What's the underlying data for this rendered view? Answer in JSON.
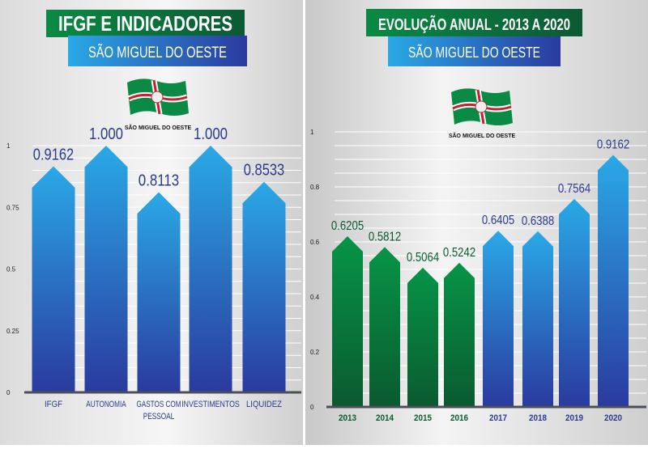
{
  "chart_data": [
    {
      "type": "bar",
      "title": "IFGF E INDICADORES",
      "subtitle": "SÃO MIGUEL DO OESTE",
      "logo_text": "SÃO MIGUEL DO OESTE",
      "categories": [
        "IFGF",
        "AUTONOMIA",
        "GASTOS COM PESSOAL",
        "INVESTIMENTOS",
        "LIQUIDEZ"
      ],
      "category_lines": [
        [
          "IFGF"
        ],
        [
          "AUTONOMIA"
        ],
        [
          "GASTOS COM",
          "PESSOAL"
        ],
        [
          "INVESTIMENTOS"
        ],
        [
          "LIQUIDEZ"
        ]
      ],
      "values": [
        0.9162,
        1.0,
        0.8113,
        1.0,
        0.8533
      ],
      "data_labels": [
        "0.9162",
        "1.000",
        "0.8113",
        "1.000",
        "0.8533"
      ],
      "ylim": [
        0,
        1
      ],
      "yticks": [
        0,
        0.25,
        0.5,
        0.75,
        1
      ],
      "ytick_labels": [
        "0",
        "0.25",
        "0.5",
        "0.75",
        "1"
      ],
      "grid": true,
      "colors": [
        "#2aa9e6",
        "#2a3a9e"
      ]
    },
    {
      "type": "bar",
      "title": "EVOLUÇÃO ANUAL - 2013 A 2020",
      "subtitle": "SÃO MIGUEL DO OESTE",
      "logo_text": "SÃO MIGUEL DO OESTE",
      "categories": [
        "2013",
        "2014",
        "2015",
        "2016",
        "2017",
        "2018",
        "2019",
        "2020"
      ],
      "values": [
        0.6205,
        0.5812,
        0.5064,
        0.5242,
        0.6405,
        0.6388,
        0.7564,
        0.9162
      ],
      "data_labels": [
        "0.6205",
        "0.5812",
        "0.5064",
        "0.5242",
        "0.6405",
        "0.6388",
        "0.7564",
        "0.9162"
      ],
      "series_group": [
        "green",
        "green",
        "green",
        "green",
        "blue",
        "blue",
        "blue",
        "blue"
      ],
      "ylim": [
        0,
        1
      ],
      "yticks": [
        0,
        0.2,
        0.4,
        0.6,
        0.8,
        1
      ],
      "ytick_labels": [
        "0",
        "0.2",
        "0.4",
        "0.6",
        "0.8",
        "1"
      ],
      "grid": true,
      "colors": {
        "green": [
          "#079447",
          "#0a5a2f"
        ],
        "blue": [
          "#2aa9e6",
          "#2a3a9e"
        ]
      }
    }
  ]
}
